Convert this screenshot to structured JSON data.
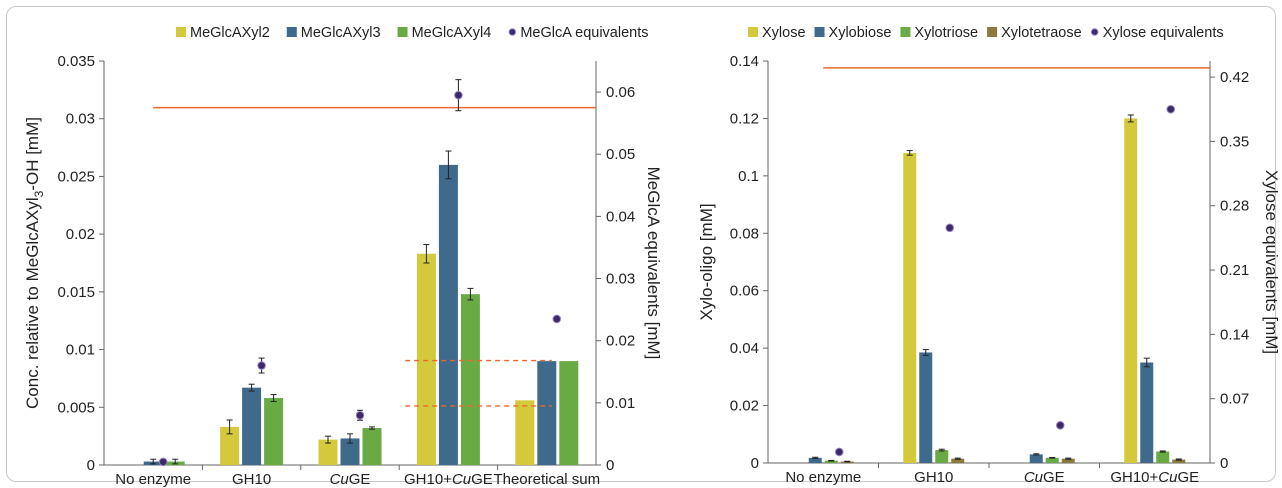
{
  "chart_data": [
    {
      "type": "bar",
      "categories": [
        "No enzyme",
        "GH10",
        "CuGE",
        "GH10+CuGE",
        "Theoretical sum"
      ],
      "series": [
        {
          "name": "MeGlcAXyl2",
          "color": "#d4c93a",
          "values": [
            0.0,
            0.0033,
            0.0022,
            0.0183,
            0.0056
          ],
          "errors": [
            0.0,
            0.0006,
            0.0003,
            0.0008,
            0.0
          ]
        },
        {
          "name": "MeGlcAXyl3",
          "color": "#3f6a8c",
          "values": [
            0.0003,
            0.0067,
            0.0023,
            0.026,
            0.009
          ],
          "errors": [
            0.0002,
            0.0003,
            0.0004,
            0.0012,
            0.0
          ]
        },
        {
          "name": "MeGlcAXyl4",
          "color": "#6aaa45",
          "values": [
            0.0003,
            0.0058,
            0.0032,
            0.0148,
            0.009
          ],
          "errors": [
            0.0002,
            0.0003,
            0.0001,
            0.0005,
            0.0
          ]
        }
      ],
      "equivalents": {
        "name": "MeGlcA equivalents",
        "color": "#3b2a66",
        "values": [
          0.0005,
          0.016,
          0.008,
          0.0595,
          0.0235
        ],
        "errors": [
          0.0003,
          0.0012,
          0.0008,
          0.0025,
          0.0
        ]
      },
      "hline_right": 0.0575,
      "hline_color": "#e8692f",
      "dashed_lines": [
        0.0095,
        0.0168
      ],
      "ylim": [
        0,
        0.035
      ],
      "yticks": [
        "0",
        "0.005",
        "0.01",
        "0.015",
        "0.02",
        "0.025",
        "0.03",
        "0.035"
      ],
      "y2lim": [
        0,
        0.065
      ],
      "y2ticks": [
        "0",
        "0.01",
        "0.02",
        "0.03",
        "0.04",
        "0.05",
        "0.06"
      ],
      "ylabel_main": "Conc. relative to MeGlcAXyl",
      "ylabel_sub": "3",
      "ylabel_end": "-OH [mM]",
      "y2label": "MeGlcA equivalents [mM]",
      "legend_position": "top",
      "grid": false
    },
    {
      "type": "bar",
      "categories": [
        "No enzyme",
        "GH10",
        "CuGE",
        "GH10+CuGE"
      ],
      "series": [
        {
          "name": "Xylose",
          "color": "#d4c93a",
          "values": [
            0.0,
            0.108,
            0.0,
            0.12
          ],
          "errors": [
            0.0,
            0.0008,
            0.0,
            0.0012
          ]
        },
        {
          "name": "Xylobiose",
          "color": "#3f6a8c",
          "values": [
            0.0018,
            0.0385,
            0.003,
            0.035
          ],
          "errors": [
            0.0002,
            0.001,
            0.0002,
            0.0015
          ]
        },
        {
          "name": "Xylotriose",
          "color": "#6aaa45",
          "values": [
            0.0008,
            0.0045,
            0.0018,
            0.004
          ],
          "errors": [
            0.0001,
            0.0003,
            0.0001,
            0.0002
          ]
        },
        {
          "name": "Xylotetraose",
          "color": "#8a7a3e",
          "values": [
            0.0005,
            0.0015,
            0.0015,
            0.0012
          ],
          "errors": [
            0.0001,
            0.0002,
            0.0002,
            0.0002
          ]
        }
      ],
      "equivalents": {
        "name": "Xylose equivalents",
        "color": "#3b2a66",
        "values": [
          0.012,
          0.256,
          0.041,
          0.385
        ],
        "errors": [
          0.0,
          0.0,
          0.0,
          0.0
        ]
      },
      "hline_right": 0.43,
      "hline_color": "#e8692f",
      "ylim": [
        0,
        0.14
      ],
      "yticks": [
        "0",
        "0.02",
        "0.04",
        "0.06",
        "0.08",
        "0.1",
        "0.12",
        "0.14"
      ],
      "y2lim": [
        0,
        0.4375
      ],
      "y2ticks": [
        "0",
        "0.07",
        "0.14",
        "0.21",
        "0.28",
        "0.35",
        "0.42"
      ],
      "ylabel": "Xylo-oligo [mM]",
      "y2label": "Xylose equivalents [mM]",
      "legend_position": "top",
      "grid": false
    }
  ]
}
